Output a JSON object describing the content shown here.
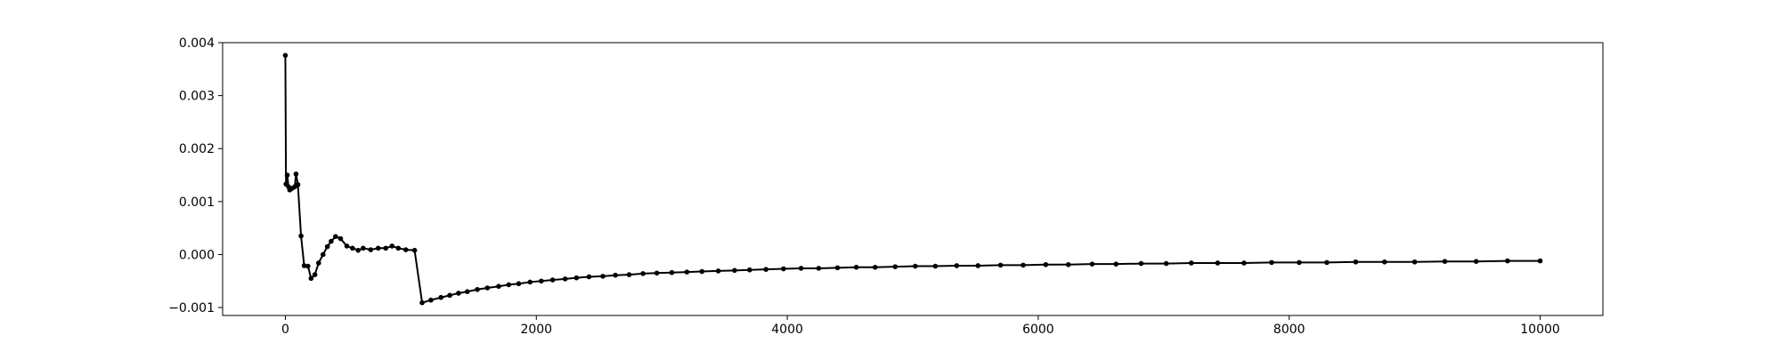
{
  "chart_data": {
    "type": "line",
    "title": "",
    "xlabel": "",
    "ylabel": "",
    "xlim": [
      -500,
      10500
    ],
    "ylim": [
      -0.00115,
      0.004
    ],
    "xticks": [
      0,
      2000,
      4000,
      6000,
      8000,
      10000
    ],
    "xtick_labels": [
      "0",
      "2000",
      "4000",
      "6000",
      "8000",
      "10000"
    ],
    "yticks": [
      -0.001,
      0.0,
      0.001,
      0.002,
      0.003,
      0.004
    ],
    "ytick_labels": [
      "−0.001",
      "0.000",
      "0.001",
      "0.002",
      "0.003",
      "0.004"
    ],
    "grid": false,
    "legend": "none",
    "line_color": "#000000",
    "series": [
      {
        "points": [
          [
            0,
            0.00376
          ],
          [
            5,
            0.00133
          ],
          [
            15,
            0.0015
          ],
          [
            25,
            0.00128
          ],
          [
            35,
            0.00122
          ],
          [
            55,
            0.00125
          ],
          [
            75,
            0.00128
          ],
          [
            85,
            0.00152
          ],
          [
            100,
            0.00132
          ],
          [
            125,
            0.00035
          ],
          [
            150,
            -0.00021
          ],
          [
            180,
            -0.00022
          ],
          [
            205,
            -0.00045
          ],
          [
            235,
            -0.00038
          ],
          [
            265,
            -0.00016
          ],
          [
            300,
            0.0
          ],
          [
            335,
            0.00015
          ],
          [
            365,
            0.00025
          ],
          [
            400,
            0.00034
          ],
          [
            440,
            0.0003
          ],
          [
            490,
            0.00016
          ],
          [
            535,
            0.00012
          ],
          [
            580,
            8e-05
          ],
          [
            620,
            0.00012
          ],
          [
            680,
            9e-05
          ],
          [
            740,
            0.00012
          ],
          [
            800,
            0.00012
          ],
          [
            850,
            0.00016
          ],
          [
            900,
            0.00012
          ],
          [
            960,
            9e-05
          ],
          [
            1030,
            8e-05
          ],
          [
            1090,
            -0.00091
          ],
          [
            1160,
            -0.00086
          ],
          [
            1240,
            -0.00081
          ],
          [
            1310,
            -0.00077
          ],
          [
            1380,
            -0.00073
          ],
          [
            1450,
            -0.0007
          ],
          [
            1530,
            -0.00066
          ],
          [
            1610,
            -0.00063
          ],
          [
            1700,
            -0.0006
          ],
          [
            1780,
            -0.00057
          ],
          [
            1860,
            -0.00055
          ],
          [
            1950,
            -0.00052
          ],
          [
            2040,
            -0.0005
          ],
          [
            2130,
            -0.00048
          ],
          [
            2230,
            -0.00046
          ],
          [
            2320,
            -0.00044
          ],
          [
            2420,
            -0.00042
          ],
          [
            2530,
            -0.00041
          ],
          [
            2630,
            -0.00039
          ],
          [
            2740,
            -0.00038
          ],
          [
            2850,
            -0.00036
          ],
          [
            2960,
            -0.00035
          ],
          [
            3080,
            -0.00034
          ],
          [
            3200,
            -0.00033
          ],
          [
            3320,
            -0.00032
          ],
          [
            3450,
            -0.00031
          ],
          [
            3580,
            -0.0003
          ],
          [
            3700,
            -0.00029
          ],
          [
            3830,
            -0.00028
          ],
          [
            3970,
            -0.00027
          ],
          [
            4110,
            -0.00026
          ],
          [
            4250,
            -0.00026
          ],
          [
            4400,
            -0.00025
          ],
          [
            4550,
            -0.00024
          ],
          [
            4700,
            -0.00024
          ],
          [
            4860,
            -0.00023
          ],
          [
            5020,
            -0.00022
          ],
          [
            5180,
            -0.00022
          ],
          [
            5350,
            -0.00021
          ],
          [
            5520,
            -0.00021
          ],
          [
            5700,
            -0.0002
          ],
          [
            5880,
            -0.0002
          ],
          [
            6060,
            -0.00019
          ],
          [
            6240,
            -0.00019
          ],
          [
            6430,
            -0.00018
          ],
          [
            6620,
            -0.00018
          ],
          [
            6820,
            -0.00017
          ],
          [
            7020,
            -0.00017
          ],
          [
            7220,
            -0.00016
          ],
          [
            7430,
            -0.00016
          ],
          [
            7640,
            -0.00016
          ],
          [
            7860,
            -0.00015
          ],
          [
            8080,
            -0.00015
          ],
          [
            8300,
            -0.00015
          ],
          [
            8530,
            -0.00014
          ],
          [
            8760,
            -0.00014
          ],
          [
            9000,
            -0.00014
          ],
          [
            9240,
            -0.00013
          ],
          [
            9490,
            -0.00013
          ],
          [
            9740,
            -0.00012
          ],
          [
            10000,
            -0.00012
          ]
        ]
      }
    ]
  }
}
